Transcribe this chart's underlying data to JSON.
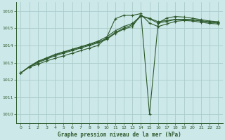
{
  "title": "Graphe pression niveau de la mer (hPa)",
  "bg_color": "#cde8e8",
  "grid_color": "#aacccc",
  "line_color": "#2d5a2d",
  "x_min": -0.5,
  "x_max": 23.5,
  "y_min": 1009.5,
  "y_max": 1016.5,
  "y_ticks": [
    1010,
    1011,
    1012,
    1013,
    1014,
    1015,
    1016
  ],
  "x_ticks": [
    0,
    1,
    2,
    3,
    4,
    5,
    6,
    7,
    8,
    9,
    10,
    11,
    12,
    13,
    14,
    15,
    16,
    17,
    18,
    19,
    20,
    21,
    22,
    23
  ],
  "series": [
    [
      1012.4,
      1012.75,
      1012.9,
      1013.1,
      1013.25,
      1013.4,
      1013.55,
      1013.7,
      1013.85,
      1014.0,
      1014.45,
      1015.55,
      1015.75,
      1015.75,
      1015.85,
      1010.0,
      1015.3,
      1015.6,
      1015.68,
      1015.65,
      1015.58,
      1015.5,
      1015.42,
      1015.38
    ],
    [
      1012.4,
      1012.75,
      1013.0,
      1013.2,
      1013.4,
      1013.55,
      1013.7,
      1013.85,
      1014.0,
      1014.15,
      1014.35,
      1014.7,
      1014.95,
      1015.1,
      1015.8,
      1015.3,
      1015.1,
      1015.25,
      1015.4,
      1015.45,
      1015.42,
      1015.35,
      1015.28,
      1015.25
    ],
    [
      1012.4,
      1012.75,
      1013.05,
      1013.25,
      1013.45,
      1013.6,
      1013.75,
      1013.9,
      1014.05,
      1014.2,
      1014.4,
      1014.75,
      1015.0,
      1015.2,
      1015.7,
      1015.55,
      1015.3,
      1015.4,
      1015.5,
      1015.5,
      1015.48,
      1015.42,
      1015.35,
      1015.3
    ],
    [
      1012.4,
      1012.78,
      1013.08,
      1013.28,
      1013.48,
      1013.63,
      1013.78,
      1013.93,
      1014.08,
      1014.25,
      1014.5,
      1014.85,
      1015.1,
      1015.28,
      1015.72,
      1015.58,
      1015.38,
      1015.45,
      1015.52,
      1015.52,
      1015.5,
      1015.44,
      1015.37,
      1015.32
    ]
  ],
  "figsize": [
    3.2,
    2.0
  ],
  "dpi": 100
}
